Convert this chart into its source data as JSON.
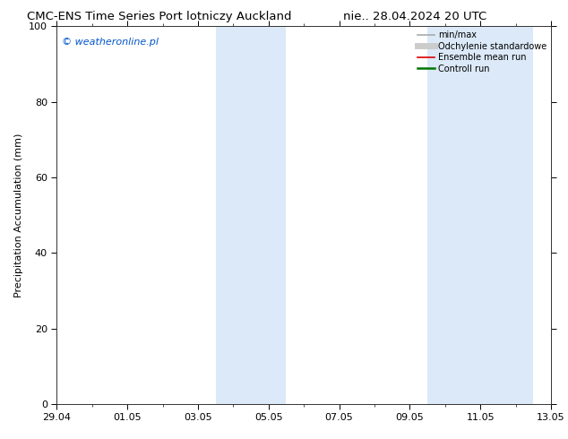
{
  "title_left": "CMC-ENS Time Series Port lotniczy Auckland",
  "title_right": "nie.. 28.04.2024 20 UTC",
  "ylabel": "Precipitation Accumulation (mm)",
  "ylim": [
    0,
    100
  ],
  "yticks": [
    0,
    20,
    40,
    60,
    80,
    100
  ],
  "x_tick_labels": [
    "29.04",
    "01.05",
    "03.05",
    "05.05",
    "07.05",
    "09.05",
    "11.05",
    "13.05"
  ],
  "x_tick_positions": [
    0,
    2,
    4,
    6,
    8,
    10,
    12,
    14
  ],
  "x_minor_tick_positions": [
    0,
    1,
    2,
    3,
    4,
    5,
    6,
    7,
    8,
    9,
    10,
    11,
    12,
    13,
    14
  ],
  "shaded_regions": [
    {
      "x_start": 4.5,
      "x_end": 6.5
    },
    {
      "x_start": 10.5,
      "x_end": 13.5
    }
  ],
  "shade_color": "#dbe9f8",
  "watermark": "© weatheronline.pl",
  "watermark_color": "#0055cc",
  "legend_items": [
    {
      "label": "min/max",
      "color": "#aaaaaa",
      "lw": 1.2,
      "style": "-"
    },
    {
      "label": "Odchylenie standardowe",
      "color": "#cccccc",
      "lw": 5,
      "style": "-"
    },
    {
      "label": "Ensemble mean run",
      "color": "#dd0000",
      "lw": 1.2,
      "style": "-"
    },
    {
      "label": "Controll run",
      "color": "#007700",
      "lw": 1.8,
      "style": "-"
    }
  ],
  "background_color": "#ffffff",
  "title_fontsize": 9.5,
  "ylabel_fontsize": 8,
  "tick_fontsize": 8,
  "watermark_fontsize": 8,
  "legend_fontsize": 7
}
